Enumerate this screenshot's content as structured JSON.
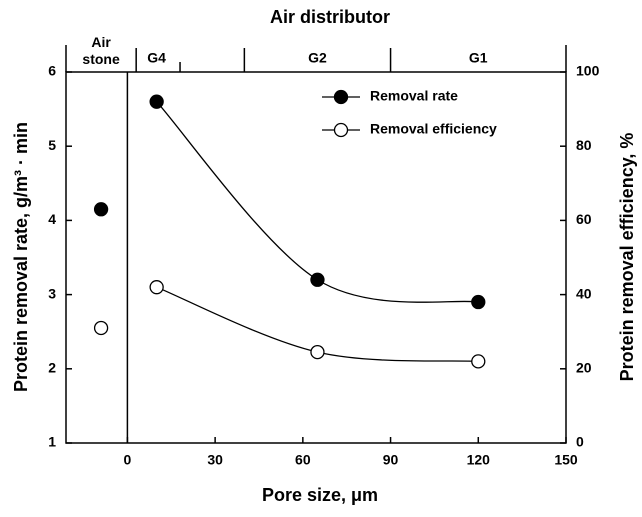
{
  "chart_data": {
    "type": "line",
    "title": "Air distributor",
    "xlabel": "Pore size, μm",
    "ylabel": "Protein removal rate, g/m³ · min",
    "y2label": "Protein removal efficiency, %",
    "xlim": [
      -21,
      150
    ],
    "xticks": [
      0,
      30,
      60,
      90,
      120,
      150
    ],
    "ylim": [
      1,
      6
    ],
    "yticks": [
      1,
      2,
      3,
      4,
      5,
      6
    ],
    "y2lim": [
      0,
      100
    ],
    "y2ticks": [
      0,
      20,
      40,
      60,
      80,
      100
    ],
    "x2ticks": [
      3,
      18,
      40,
      90
    ],
    "x2labels": [
      {
        "label": "Air stone",
        "x": -9
      },
      {
        "label": "G4",
        "x": 10
      },
      {
        "label": "G2",
        "x": 65
      },
      {
        "label": "G1",
        "x": 120
      }
    ],
    "x": [
      -9,
      10,
      65,
      120
    ],
    "series": [
      {
        "name": "Removal rate",
        "color": "#000000",
        "marker": "filled",
        "values": [
          4.15,
          5.6,
          3.2,
          2.9
        ]
      },
      {
        "name": "Removal efficiency",
        "color": "#000000",
        "marker": "open",
        "axis": "y2",
        "values": [
          31,
          42,
          24.5,
          22
        ]
      }
    ],
    "legend": "upper right"
  }
}
